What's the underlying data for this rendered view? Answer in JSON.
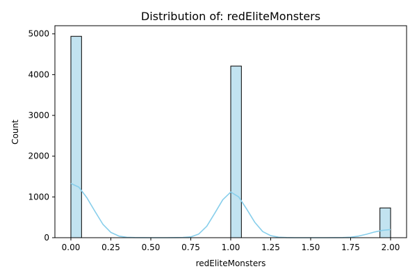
{
  "chart_data": {
    "type": "histogram",
    "title": "Distribution of: redEliteMonsters",
    "xlabel": "redEliteMonsters",
    "ylabel": "Count",
    "xlim": [
      -0.1,
      2.1
    ],
    "ylim": [
      0,
      5200
    ],
    "x_ticks": [
      "0.00",
      "0.25",
      "0.50",
      "0.75",
      "1.00",
      "1.25",
      "1.50",
      "1.75",
      "2.00"
    ],
    "y_ticks": [
      "0",
      "1000",
      "2000",
      "3000",
      "4000",
      "5000"
    ],
    "bins": [
      {
        "x_start": 0.0,
        "x_end": 0.0667,
        "count": 4940
      },
      {
        "x_start": 0.9333,
        "x_end": 1.0,
        "count": 0
      },
      {
        "x_start": 1.0,
        "x_end": 1.0667,
        "count": 4210
      },
      {
        "x_start": 1.9333,
        "x_end": 2.0,
        "count": 730
      }
    ],
    "kde": {
      "x": [
        0.0,
        0.05,
        0.1,
        0.15,
        0.2,
        0.25,
        0.3,
        0.35,
        0.4,
        0.5,
        0.6,
        0.7,
        0.75,
        0.8,
        0.85,
        0.9,
        0.95,
        1.0,
        1.05,
        1.1,
        1.15,
        1.2,
        1.25,
        1.3,
        1.35,
        1.4,
        1.5,
        1.6,
        1.7,
        1.75,
        1.8,
        1.85,
        1.9,
        1.95,
        2.0
      ],
      "y": [
        1330,
        1240,
        980,
        650,
        330,
        130,
        40,
        10,
        3,
        0,
        0,
        5,
        20,
        90,
        280,
        600,
        930,
        1120,
        1000,
        700,
        380,
        150,
        50,
        12,
        3,
        0,
        0,
        0,
        3,
        12,
        40,
        85,
        140,
        180,
        200
      ]
    },
    "colors": {
      "bar_fill": "#c2e3f0",
      "bar_edge": "#000000",
      "kde_line": "#87ceeb",
      "axis": "#000000"
    }
  }
}
